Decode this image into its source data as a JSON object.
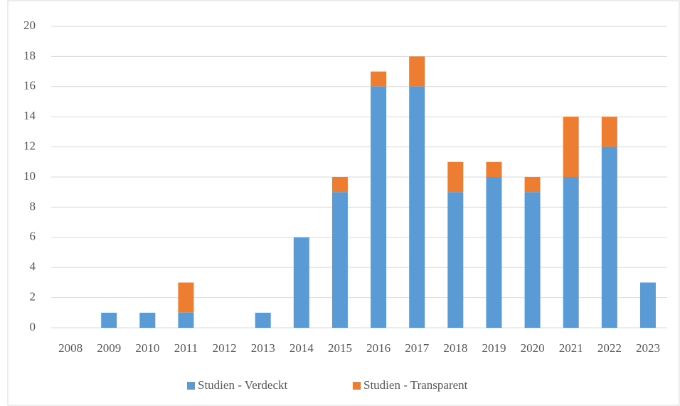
{
  "chart_data": {
    "type": "stacked_bar",
    "categories": [
      "2008",
      "2009",
      "2010",
      "2011",
      "2012",
      "2013",
      "2014",
      "2015",
      "2016",
      "2017",
      "2018",
      "2019",
      "2020",
      "2021",
      "2022",
      "2023"
    ],
    "series": [
      {
        "name": "Studien - Verdeckt",
        "color": "#5b9bd5",
        "values": [
          0,
          1,
          1,
          1,
          0,
          1,
          6,
          9,
          16,
          16,
          9,
          10,
          9,
          10,
          12,
          3
        ]
      },
      {
        "name": "Studien - Transparent",
        "color": "#ed7d31",
        "values": [
          0,
          0,
          0,
          2,
          0,
          0,
          0,
          1,
          1,
          2,
          2,
          1,
          1,
          4,
          2,
          0
        ]
      }
    ],
    "ylim": [
      0,
      20
    ],
    "yticks": [
      0,
      2,
      4,
      6,
      8,
      10,
      12,
      14,
      16,
      18,
      20
    ],
    "grid": true,
    "legend": "bottom"
  }
}
